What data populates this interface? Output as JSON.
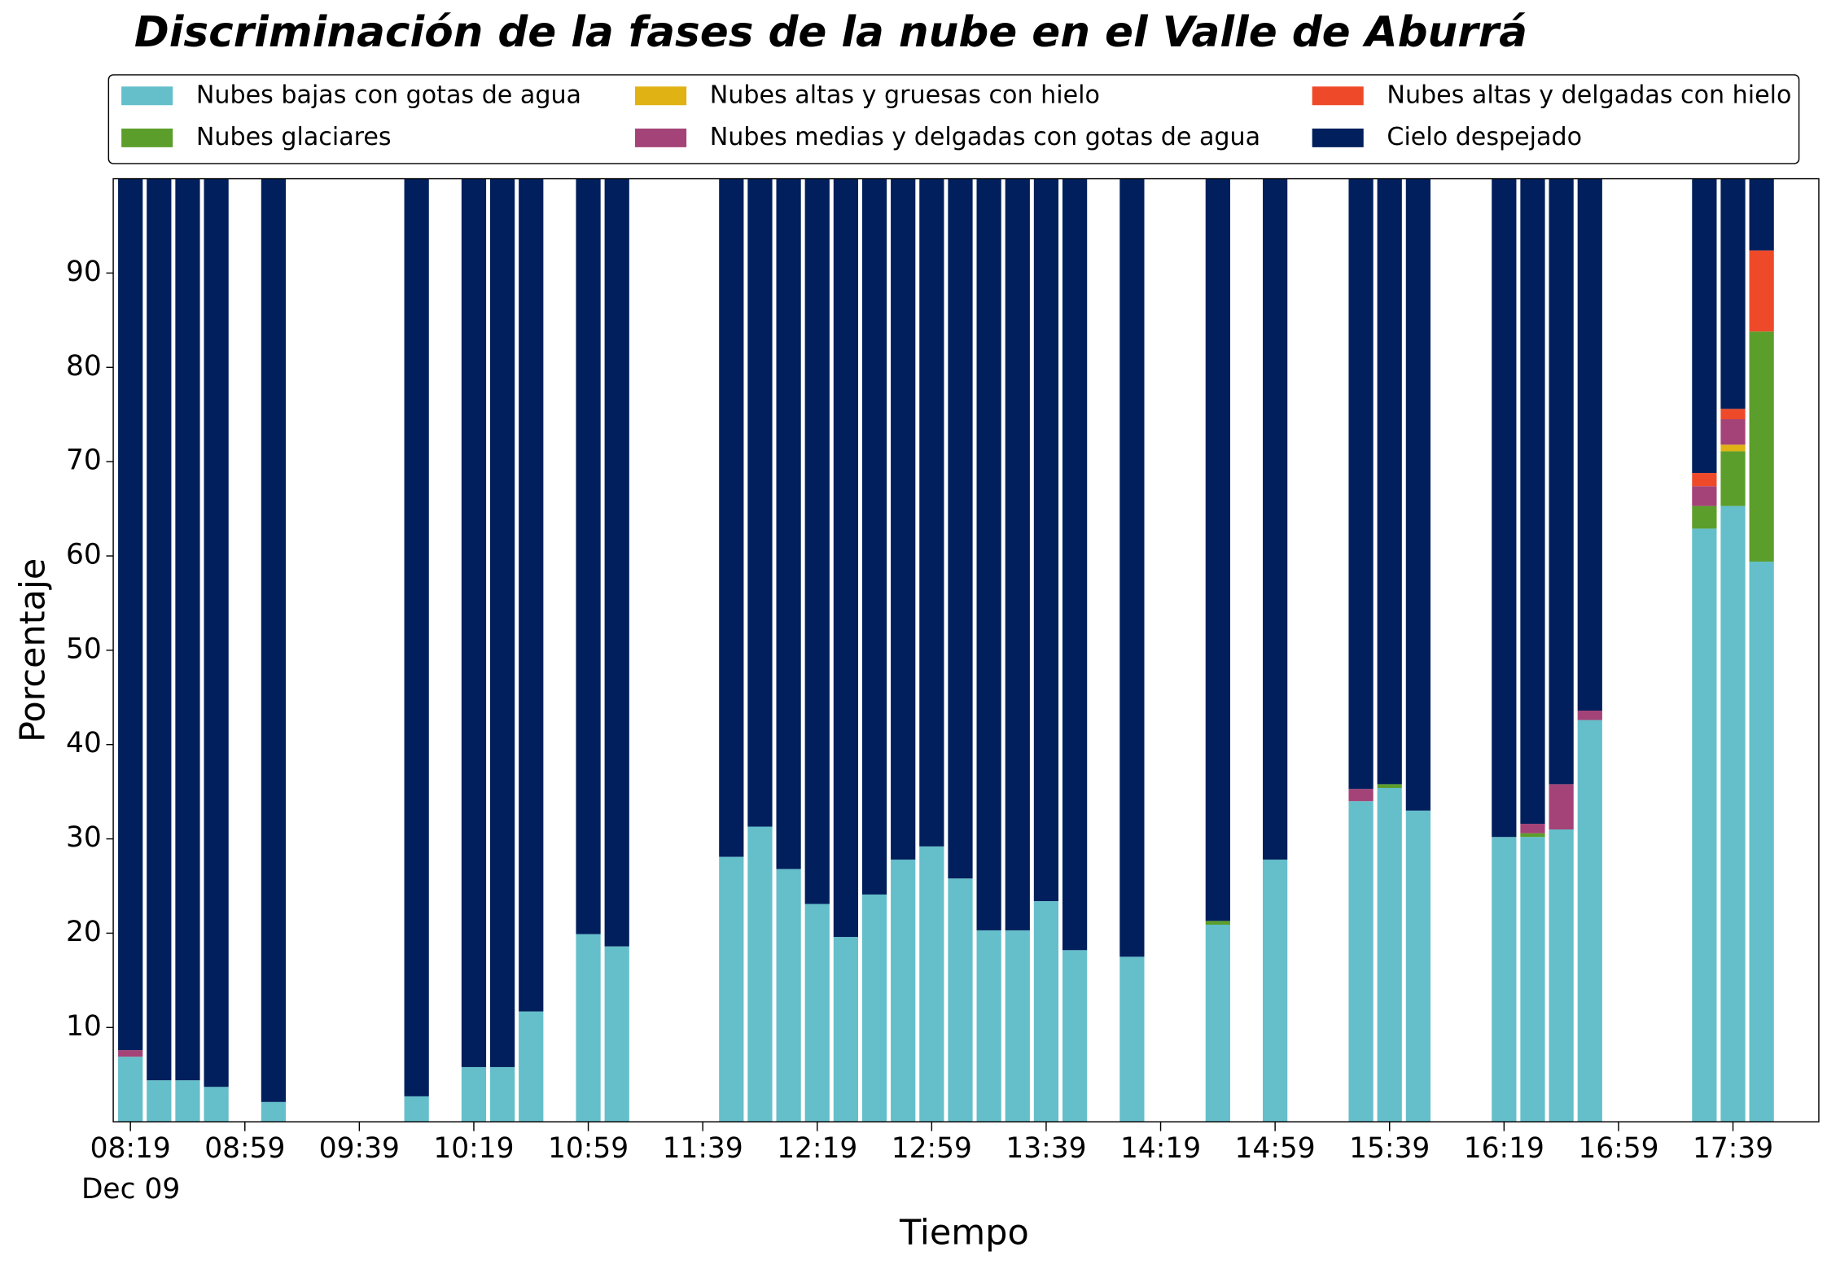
{
  "chart_data": {
    "type": "stacked_bar",
    "title": "Discriminación de la fases de la nube en el Valle de Aburrá",
    "xlabel": "Tiempo",
    "ylabel": "Porcentaje",
    "x_date_label": "Dec 09",
    "x": [
      "08:19",
      "08:29",
      "08:39",
      "08:49",
      "09:09",
      "09:59",
      "10:19",
      "10:29",
      "10:39",
      "10:59",
      "11:09",
      "11:49",
      "11:59",
      "12:09",
      "12:19",
      "12:29",
      "12:39",
      "12:49",
      "12:59",
      "13:09",
      "13:19",
      "13:29",
      "13:39",
      "13:49",
      "14:09",
      "14:39",
      "14:59",
      "15:29",
      "15:39",
      "15:49",
      "16:19",
      "16:29",
      "16:39",
      "16:49",
      "17:29",
      "17:39",
      "17:49"
    ],
    "xlim": [
      "08:13",
      "18:09"
    ],
    "xticks": [
      "08:19",
      "08:59",
      "09:39",
      "10:19",
      "10:59",
      "11:39",
      "12:19",
      "12:59",
      "13:39",
      "14:19",
      "14:59",
      "15:39",
      "16:19",
      "16:59",
      "17:39"
    ],
    "ylim": [
      0,
      100
    ],
    "yticks": [
      10,
      20,
      30,
      40,
      50,
      60,
      70,
      80,
      90
    ],
    "legend": "top",
    "series": [
      {
        "name": "Nubes bajas con gotas de agua",
        "color": "#64bfca",
        "values": [
          6.9,
          4.4,
          4.4,
          3.7,
          2.1,
          2.7,
          5.8,
          5.8,
          11.7,
          19.9,
          18.6,
          28.1,
          31.3,
          26.8,
          23.1,
          19.6,
          24.1,
          27.8,
          29.2,
          25.8,
          20.3,
          20.3,
          23.4,
          18.2,
          17.5,
          20.9,
          27.8,
          34.0,
          35.4,
          33.0,
          30.2,
          30.2,
          31.0,
          42.6,
          62.9,
          65.3,
          59.4
        ]
      },
      {
        "name": "Nubes glaciares",
        "color": "#5c9e2b",
        "values": [
          0,
          0,
          0,
          0,
          0,
          0,
          0,
          0,
          0,
          0,
          0,
          0,
          0,
          0,
          0,
          0,
          0,
          0,
          0,
          0,
          0,
          0,
          0,
          0,
          0,
          0.4,
          0,
          0,
          0.4,
          0,
          0,
          0.4,
          0,
          0,
          2.4,
          5.8,
          24.4
        ]
      },
      {
        "name": "Nubes altas y gruesas con hielo",
        "color": "#e0b214",
        "values": [
          0,
          0,
          0,
          0,
          0,
          0,
          0,
          0,
          0,
          0,
          0,
          0,
          0,
          0,
          0,
          0,
          0,
          0,
          0,
          0,
          0,
          0,
          0,
          0,
          0,
          0,
          0,
          0,
          0,
          0,
          0,
          0,
          0,
          0,
          0,
          0.7,
          0
        ]
      },
      {
        "name": "Nubes medias y delgadas con gotas de agua",
        "color": "#a44377",
        "values": [
          0.7,
          0,
          0,
          0,
          0,
          0,
          0,
          0,
          0,
          0,
          0,
          0,
          0,
          0,
          0,
          0,
          0,
          0,
          0,
          0,
          0,
          0,
          0,
          0,
          0,
          0,
          0,
          1.3,
          0,
          0,
          0,
          1.0,
          4.8,
          1.0,
          2.1,
          2.7,
          0
        ]
      },
      {
        "name": "Nubes altas y delgadas con hielo",
        "color": "#ee4a2a",
        "values": [
          0,
          0,
          0,
          0,
          0,
          0,
          0,
          0,
          0,
          0,
          0,
          0,
          0,
          0,
          0,
          0,
          0,
          0,
          0,
          0,
          0,
          0,
          0,
          0,
          0,
          0,
          0,
          0,
          0,
          0,
          0,
          0,
          0,
          0,
          1.4,
          1.1,
          8.6
        ]
      },
      {
        "name": "Cielo despejado",
        "color": "#001f5c",
        "values": [
          92.4,
          95.6,
          95.6,
          96.3,
          97.9,
          97.3,
          94.2,
          94.2,
          88.3,
          80.1,
          81.4,
          71.9,
          68.7,
          73.2,
          76.9,
          80.4,
          75.9,
          72.2,
          70.8,
          74.2,
          79.7,
          79.7,
          76.6,
          81.8,
          82.5,
          78.7,
          72.2,
          64.7,
          64.2,
          67.0,
          69.8,
          68.4,
          64.2,
          56.4,
          31.2,
          24.4,
          7.6
        ]
      }
    ]
  }
}
